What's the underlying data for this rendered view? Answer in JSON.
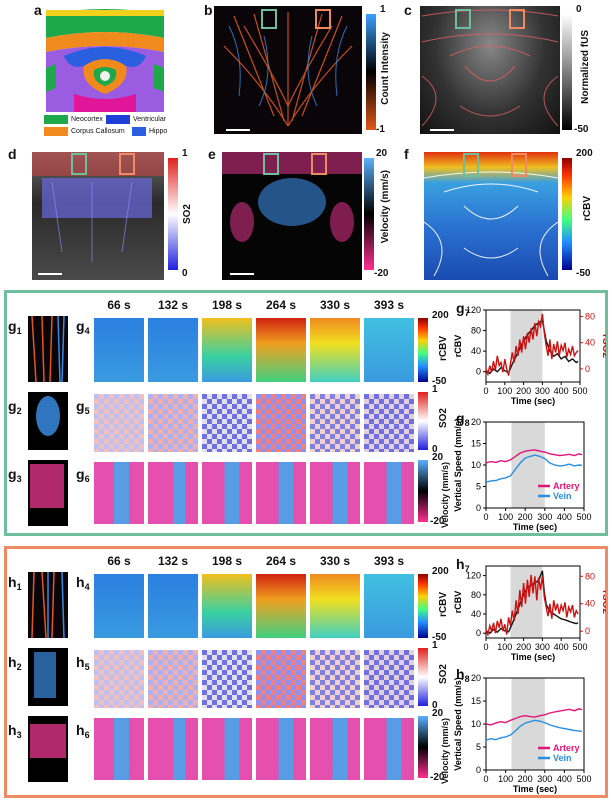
{
  "panels": {
    "a": "a",
    "b": "b",
    "c": "c",
    "d": "d",
    "e": "e",
    "f": "f",
    "g_rows": [
      {
        "l": "g",
        "s": "1"
      },
      {
        "l": "g",
        "s": "2"
      },
      {
        "l": "g",
        "s": "3"
      }
    ],
    "g_mid": [
      {
        "l": "g",
        "s": "4"
      },
      {
        "l": "g",
        "s": "5"
      },
      {
        "l": "g",
        "s": "6"
      }
    ],
    "h_rows": [
      {
        "l": "h",
        "s": "1"
      },
      {
        "l": "h",
        "s": "2"
      },
      {
        "l": "h",
        "s": "3"
      }
    ],
    "h_mid": [
      {
        "l": "h",
        "s": "4"
      },
      {
        "l": "h",
        "s": "5"
      },
      {
        "l": "h",
        "s": "6"
      }
    ],
    "g7": {
      "l": "g",
      "s": "7"
    },
    "g8": {
      "l": "g",
      "s": "8"
    },
    "h7": {
      "l": "h",
      "s": "7"
    },
    "h8": {
      "l": "h",
      "s": "8"
    }
  },
  "atlas_legend": [
    {
      "label": "Neocortex",
      "color": "#1fa84a"
    },
    {
      "label": "Ventricular",
      "color": "#1f3fd8"
    },
    {
      "label": "Corpus Callosum",
      "color": "#f08a1c"
    },
    {
      "label": "Hippo",
      "color": "#2a5fe0"
    }
  ],
  "colorbars": {
    "b": {
      "top": "1",
      "bottom": "-1",
      "title": "Count Intensity"
    },
    "c": {
      "top": "0",
      "bottom": "-50",
      "title": "Normalized fUS"
    },
    "d": {
      "top": "1",
      "bottom": "0",
      "title": "SO2"
    },
    "e": {
      "top": "20",
      "bottom": "-20",
      "title": "Velocity (mm/s)"
    },
    "f": {
      "top": "200",
      "bottom": "-50",
      "title": "rCBV"
    },
    "g4": {
      "top": "200",
      "bottom": "-50",
      "title": "rCBV"
    },
    "g5": {
      "top": "1",
      "bottom": "0",
      "title": "SO2"
    },
    "g6": {
      "top": "20",
      "bottom": "-20",
      "title": "Velocity (mm/s)"
    },
    "h4": {
      "top": "200",
      "bottom": "-50",
      "title": "rCBV"
    },
    "h5": {
      "top": "1",
      "bottom": "0",
      "title": "SO2"
    },
    "h6": {
      "top": "20",
      "bottom": "-20",
      "title": "Velocity (mm/s)"
    }
  },
  "timepoints": [
    "66 s",
    "132 s",
    "198 s",
    "264 s",
    "330 s",
    "393 s"
  ],
  "colors": {
    "teal_frame": "#6fbf9f",
    "orange_frame": "#f08a63",
    "artery": "#e0157a",
    "vein": "#2a8fe0",
    "sco2_red": "#cc1111"
  },
  "chart_data": [
    {
      "id": "g7",
      "type": "line",
      "xlabel": "Time (sec)",
      "ylabel": "rCBV",
      "y2label": "rSO2",
      "xlim": [
        0,
        500
      ],
      "ylim": [
        -20,
        120
      ],
      "y2lim": [
        -20,
        90
      ],
      "xticks": [
        0,
        100,
        200,
        300,
        400,
        500
      ],
      "yticks": [
        0,
        40,
        80,
        120
      ],
      "y2ticks": [
        0,
        40,
        80
      ],
      "stim": [
        130,
        300
      ],
      "series": [
        {
          "axis": "y",
          "color": "#111111",
          "x": [
            0,
            20,
            40,
            60,
            80,
            100,
            120,
            140,
            160,
            180,
            200,
            220,
            240,
            260,
            280,
            300,
            320,
            340,
            360,
            380,
            400,
            420,
            440,
            460,
            480,
            490
          ],
          "y": [
            2,
            -3,
            5,
            0,
            8,
            2,
            -2,
            15,
            30,
            45,
            60,
            72,
            80,
            90,
            95,
            100,
            60,
            40,
            30,
            35,
            25,
            30,
            20,
            25,
            18,
            20
          ]
        },
        {
          "axis": "y2",
          "color": "#cc1111",
          "x": [
            0,
            10,
            20,
            30,
            40,
            50,
            60,
            70,
            80,
            90,
            100,
            110,
            120,
            130,
            140,
            150,
            160,
            170,
            180,
            190,
            200,
            210,
            220,
            230,
            240,
            250,
            260,
            270,
            280,
            290,
            300,
            310,
            320,
            330,
            340,
            350,
            360,
            370,
            380,
            390,
            400,
            410,
            420,
            430,
            440,
            450,
            460,
            470,
            480,
            490
          ],
          "y": [
            0,
            -8,
            5,
            -5,
            12,
            -2,
            20,
            5,
            10,
            -5,
            15,
            0,
            -10,
            8,
            25,
            10,
            35,
            20,
            45,
            25,
            50,
            30,
            55,
            40,
            62,
            45,
            70,
            50,
            72,
            65,
            84,
            55,
            35,
            20,
            45,
            15,
            38,
            25,
            42,
            20,
            36,
            28,
            40,
            18,
            30,
            22,
            35,
            20,
            25,
            28
          ]
        }
      ]
    },
    {
      "id": "g8",
      "type": "line",
      "xlabel": "Time (sec)",
      "ylabel": "Vertical Speed (mm/s)",
      "xlim": [
        0,
        500
      ],
      "ylim": [
        0,
        20
      ],
      "xticks": [
        0,
        100,
        200,
        300,
        400,
        500
      ],
      "yticks": [
        0,
        5,
        10,
        15,
        20
      ],
      "stim": [
        130,
        300
      ],
      "legend": [
        "Artery",
        "Vein"
      ],
      "series": [
        {
          "name": "Artery",
          "color": "#e0157a",
          "x": [
            0,
            25,
            50,
            75,
            100,
            125,
            150,
            175,
            200,
            225,
            250,
            275,
            300,
            325,
            350,
            375,
            400,
            425,
            450,
            475,
            490
          ],
          "y": [
            10.5,
            10.8,
            10.6,
            11,
            10.8,
            11.2,
            12,
            12.8,
            13.2,
            13.4,
            13.5,
            13.2,
            13,
            12.6,
            12.4,
            12.2,
            12.3,
            12.5,
            12.2,
            12.6,
            12.4
          ]
        },
        {
          "name": "Vein",
          "color": "#2a8fe0",
          "x": [
            0,
            25,
            50,
            75,
            100,
            125,
            150,
            175,
            200,
            225,
            250,
            275,
            300,
            325,
            350,
            375,
            400,
            425,
            450,
            475,
            490
          ],
          "y": [
            6,
            6.3,
            6.4,
            6.8,
            7,
            7.5,
            9,
            10.5,
            11.6,
            12,
            12.3,
            12,
            11.5,
            10.5,
            10,
            9.8,
            9.9,
            10.2,
            9.8,
            10,
            9.9
          ]
        }
      ]
    },
    {
      "id": "h7",
      "type": "line",
      "xlabel": "Time (sec)",
      "ylabel": "rCBV",
      "y2label": "rSO2",
      "xlim": [
        0,
        500
      ],
      "ylim": [
        -10,
        140
      ],
      "y2lim": [
        -10,
        95
      ],
      "xticks": [
        0,
        100,
        200,
        300,
        400,
        500
      ],
      "yticks": [
        0,
        40,
        80,
        120
      ],
      "y2ticks": [
        0,
        40,
        80
      ],
      "stim": [
        130,
        300
      ],
      "series": [
        {
          "axis": "y",
          "color": "#111111",
          "x": [
            0,
            20,
            40,
            60,
            80,
            100,
            120,
            140,
            160,
            180,
            200,
            220,
            240,
            260,
            280,
            300,
            310,
            320,
            340,
            360,
            380,
            400,
            420,
            440,
            460,
            480,
            490
          ],
          "y": [
            5,
            0,
            8,
            2,
            10,
            5,
            3,
            20,
            40,
            60,
            80,
            95,
            100,
            105,
            110,
            130,
            85,
            60,
            45,
            40,
            35,
            30,
            28,
            25,
            22,
            20,
            22
          ]
        },
        {
          "axis": "y2",
          "color": "#cc1111",
          "x": [
            0,
            10,
            20,
            30,
            40,
            50,
            60,
            70,
            80,
            90,
            100,
            110,
            120,
            130,
            140,
            150,
            160,
            170,
            180,
            190,
            200,
            210,
            220,
            230,
            240,
            250,
            260,
            270,
            280,
            290,
            300,
            310,
            320,
            330,
            340,
            350,
            360,
            370,
            380,
            390,
            400,
            410,
            420,
            430,
            440,
            450,
            460,
            470,
            480,
            490
          ],
          "y": [
            2,
            -5,
            8,
            0,
            12,
            -3,
            15,
            5,
            18,
            0,
            10,
            -5,
            20,
            8,
            30,
            15,
            45,
            25,
            60,
            35,
            70,
            40,
            75,
            50,
            82,
            55,
            80,
            45,
            78,
            60,
            80,
            50,
            35,
            22,
            40,
            18,
            45,
            30,
            40,
            25,
            38,
            30,
            42,
            20,
            35,
            28,
            38,
            20,
            30,
            25
          ]
        }
      ]
    },
    {
      "id": "h8",
      "type": "line",
      "xlabel": "Time (sec)",
      "ylabel": "Vertical Speed (mm/s)",
      "xlim": [
        0,
        500
      ],
      "ylim": [
        0,
        20
      ],
      "xticks": [
        0,
        100,
        200,
        300,
        400,
        500
      ],
      "yticks": [
        0,
        5,
        10,
        15,
        20
      ],
      "stim": [
        130,
        300
      ],
      "legend": [
        "Artery",
        "Vein"
      ],
      "series": [
        {
          "name": "Artery",
          "color": "#e0157a",
          "x": [
            0,
            25,
            50,
            75,
            100,
            125,
            150,
            175,
            200,
            225,
            250,
            275,
            300,
            325,
            350,
            375,
            400,
            425,
            450,
            475,
            490
          ],
          "y": [
            10,
            9.8,
            10.2,
            10.5,
            10.3,
            10.8,
            11.2,
            11.6,
            11.8,
            11.6,
            11.5,
            11.8,
            12,
            12.4,
            12.6,
            12.8,
            13,
            13.2,
            12.9,
            13.3,
            13.1
          ]
        },
        {
          "name": "Vein",
          "color": "#2a8fe0",
          "x": [
            0,
            25,
            50,
            75,
            100,
            125,
            150,
            175,
            200,
            225,
            250,
            275,
            300,
            325,
            350,
            375,
            400,
            425,
            450,
            475,
            490
          ],
          "y": [
            6.5,
            6.8,
            6.6,
            7,
            7.2,
            7.6,
            8.5,
            9.5,
            10.2,
            10.5,
            10.8,
            10.6,
            10.3,
            9.8,
            9.5,
            9.2,
            9,
            8.8,
            8.6,
            8.5,
            8.4
          ]
        }
      ]
    }
  ]
}
